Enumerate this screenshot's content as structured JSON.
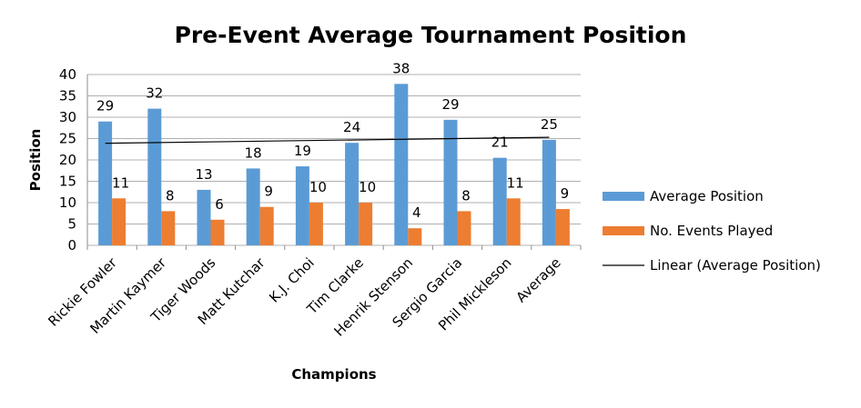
{
  "chart_data": {
    "type": "bar",
    "title": "Pre-Event Average Tournament Position",
    "xlabel": "Champions",
    "ylabel": "Position",
    "ylim": [
      0,
      40
    ],
    "yticks": [
      0,
      5,
      10,
      15,
      20,
      25,
      30,
      35,
      40
    ],
    "grid": true,
    "legend_position": "right",
    "categories": [
      "Rickie Fowler",
      "Martin Kaymer",
      "Tiger Woods",
      "Matt Kutchar",
      "K.J. Choi",
      "Tim Clarke",
      "Henrik Stenson",
      "Sergio Garcia",
      "Phil Mickleson",
      "Average"
    ],
    "series": [
      {
        "name": "Average Position",
        "color": "#5B9BD5",
        "values": [
          29,
          32,
          13,
          18,
          18.5,
          24,
          37.8,
          29.4,
          20.5,
          24.7
        ],
        "labels": [
          "29",
          "32",
          "13",
          "18",
          "19",
          "24",
          "38",
          "29",
          "21",
          "25"
        ]
      },
      {
        "name": "No. Events Played",
        "color": "#ED7D31",
        "values": [
          11,
          8,
          6,
          9,
          10,
          10,
          4,
          8,
          11,
          8.5
        ],
        "labels": [
          "11",
          "8",
          "6",
          "9",
          "10",
          "10",
          "4",
          "8",
          "11",
          "9"
        ]
      }
    ],
    "trendline": {
      "name": "Linear (Average Position)",
      "color": "#000000",
      "start": 23.9,
      "end": 25.3
    }
  }
}
